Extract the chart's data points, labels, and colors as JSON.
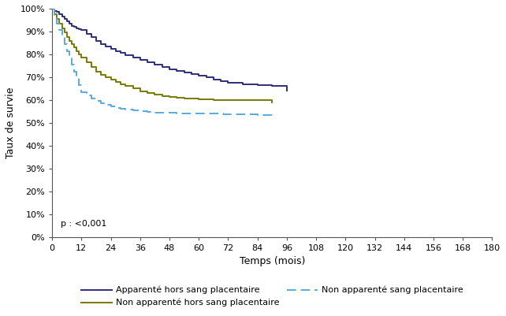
{
  "ylabel": "Taux de survie",
  "xlabel": "Temps (mois)",
  "pvalue": "p : <0,001",
  "ylim": [
    0,
    1.0
  ],
  "xlim": [
    0,
    180
  ],
  "xticks": [
    0,
    12,
    24,
    36,
    48,
    60,
    72,
    84,
    96,
    108,
    120,
    132,
    144,
    156,
    168,
    180
  ],
  "yticks": [
    0.0,
    0.1,
    0.2,
    0.3,
    0.4,
    0.5,
    0.6,
    0.7,
    0.8,
    0.9,
    1.0
  ],
  "ytick_labels": [
    "0%",
    "10%",
    "20%",
    "30%",
    "40%",
    "50%",
    "60%",
    "70%",
    "80%",
    "90%",
    "100%"
  ],
  "curve1_color": "#2e2e7a",
  "curve2_color": "#7a7a00",
  "curve3_color": "#5aaadd",
  "curve1_label": "Apparenté hors sang placentaire",
  "curve2_label": "Non apparenté hors sang placentaire",
  "curve3_label": "Non apparenté sang placentaire",
  "curve1_x": [
    0,
    1,
    2,
    3,
    4,
    5,
    6,
    7,
    8,
    9,
    10,
    11,
    12,
    14,
    16,
    18,
    20,
    22,
    24,
    26,
    28,
    30,
    33,
    36,
    39,
    42,
    45,
    48,
    51,
    54,
    57,
    60,
    63,
    66,
    69,
    72,
    78,
    84,
    90,
    96
  ],
  "curve1_y": [
    1.0,
    0.99,
    0.985,
    0.975,
    0.965,
    0.955,
    0.945,
    0.935,
    0.925,
    0.92,
    0.915,
    0.91,
    0.905,
    0.89,
    0.875,
    0.86,
    0.845,
    0.835,
    0.825,
    0.815,
    0.805,
    0.795,
    0.785,
    0.775,
    0.765,
    0.755,
    0.745,
    0.735,
    0.727,
    0.72,
    0.714,
    0.708,
    0.7,
    0.69,
    0.682,
    0.675,
    0.67,
    0.665,
    0.66,
    0.64
  ],
  "curve2_x": [
    0,
    1,
    2,
    3,
    4,
    5,
    6,
    7,
    8,
    9,
    10,
    11,
    12,
    14,
    16,
    18,
    20,
    22,
    24,
    26,
    28,
    30,
    33,
    36,
    39,
    42,
    45,
    48,
    51,
    54,
    57,
    60,
    63,
    66,
    70,
    90
  ],
  "curve2_y": [
    1.0,
    0.975,
    0.955,
    0.935,
    0.915,
    0.895,
    0.875,
    0.86,
    0.845,
    0.83,
    0.815,
    0.8,
    0.785,
    0.765,
    0.745,
    0.725,
    0.71,
    0.7,
    0.69,
    0.68,
    0.67,
    0.66,
    0.65,
    0.638,
    0.63,
    0.622,
    0.618,
    0.614,
    0.61,
    0.608,
    0.606,
    0.604,
    0.602,
    0.6,
    0.598,
    0.59
  ],
  "curve3_x": [
    0,
    1,
    2,
    3,
    4,
    5,
    6,
    7,
    8,
    9,
    10,
    11,
    12,
    14,
    16,
    18,
    20,
    22,
    24,
    26,
    28,
    30,
    33,
    36,
    39,
    42,
    45,
    48,
    51,
    54,
    57,
    60,
    63,
    66,
    70,
    84,
    90
  ],
  "curve3_y": [
    1.0,
    0.965,
    0.935,
    0.905,
    0.875,
    0.845,
    0.815,
    0.785,
    0.755,
    0.725,
    0.695,
    0.665,
    0.635,
    0.62,
    0.605,
    0.595,
    0.585,
    0.578,
    0.572,
    0.566,
    0.561,
    0.557,
    0.553,
    0.55,
    0.548,
    0.546,
    0.545,
    0.543,
    0.542,
    0.542,
    0.541,
    0.541,
    0.54,
    0.54,
    0.538,
    0.535,
    0.52
  ],
  "background_color": "#ffffff",
  "legend_fontsize": 8,
  "axis_fontsize": 9,
  "tick_fontsize": 8
}
